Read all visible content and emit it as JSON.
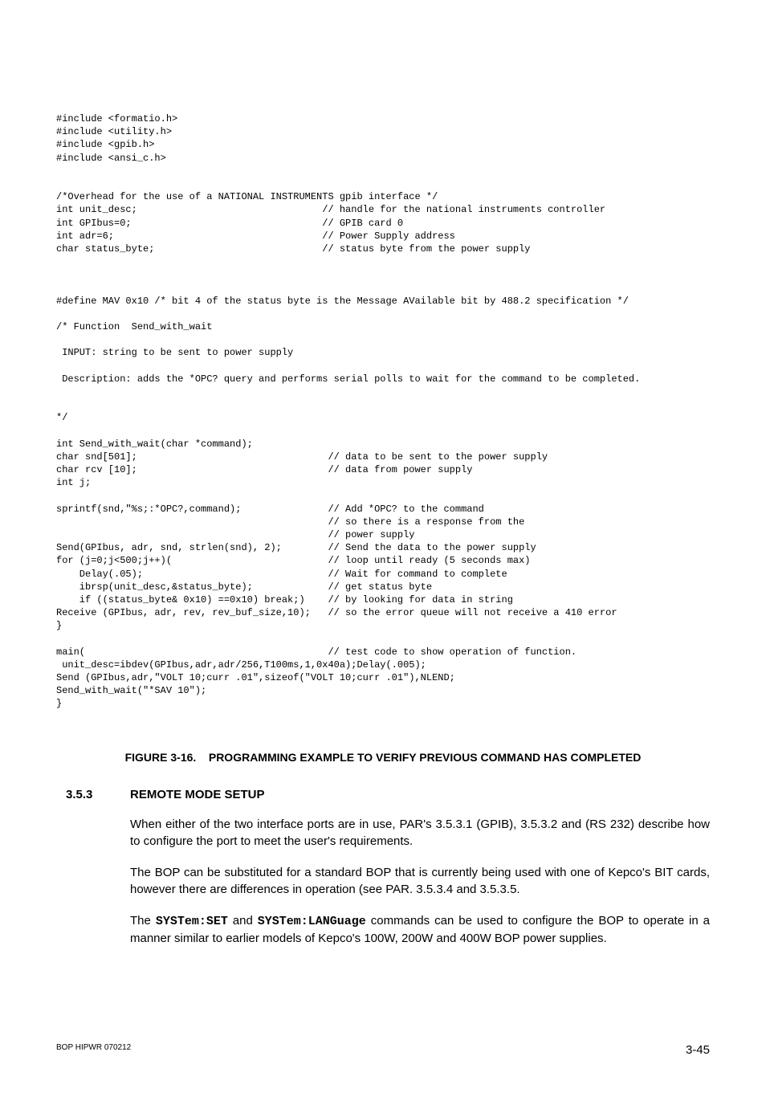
{
  "code": {
    "lines": [
      "#include <formatio.h>",
      "#include <utility.h>",
      "#include <gpib.h>",
      "#include <ansi_c.h>",
      "",
      "",
      "/*Overhead for the use of a NATIONAL INSTRUMENTS gpib interface */",
      "int unit_desc;                                // handle for the national instruments controller",
      "int GPIbus=0;                                 // GPIB card 0",
      "int adr=6;                                    // Power Supply address",
      "char status_byte;                             // status byte from the power supply",
      "",
      "",
      "",
      "#define MAV 0x10 /* bit 4 of the status byte is the Message AVailable bit by 488.2 specification */",
      "",
      "/* Function  Send_with_wait",
      "",
      " INPUT: string to be sent to power supply",
      "",
      " Description: adds the *OPC? query and performs serial polls to wait for the command to be completed.",
      "",
      "",
      "*/",
      "",
      "int Send_with_wait(char *command);",
      "char snd[501];                                 // data to be sent to the power supply",
      "char rcv [10];                                 // data from power supply",
      "int j;",
      "",
      "sprintf(snd,\"%s;:*OPC?,command);               // Add *OPC? to the command",
      "                                               // so there is a response from the",
      "                                               // power supply",
      "Send(GPIbus, adr, snd, strlen(snd), 2);        // Send the data to the power supply",
      "for (j=0;j<500;j++)(                           // loop until ready (5 seconds max)",
      "    Delay(.05);                                // Wait for command to complete",
      "    ibrsp(unit_desc,&status_byte);             // get status byte",
      "    if ((status_byte& 0x10) ==0x10) break;)    // by looking for data in string",
      "Receive (GPIbus, adr, rev, rev_buf_size,10);   // so the error queue will not receive a 410 error",
      "}",
      "",
      "main(                                          // test code to show operation of function.",
      " unit_desc=ibdev(GPIbus,adr,adr/256,T100ms,1,0x40a);Delay(.005);",
      "Send (GPIbus,adr,\"VOLT 10;curr .01\",sizeof(\"VOLT 10;curr .01\"),NLEND;",
      "Send_with_wait(\"*SAV 10\");",
      "}"
    ]
  },
  "figure": {
    "label": "FIGURE 3-16.",
    "title": "PROGRAMMING EXAMPLE TO VERIFY PREVIOUS COMMAND HAS COMPLETED"
  },
  "section": {
    "number": "3.5.3",
    "title": "REMOTE MODE SETUP"
  },
  "paragraphs": {
    "p1": "When either of the two interface ports are in use, PAR's 3.5.3.1 (GPIB), 3.5.3.2 and (RS 232) describe how to configure the port to meet the user's requirements.",
    "p2": "The BOP can be substituted for a standard BOP that is currently being used with one of Kepco's BIT cards, however there are differences in operation (see PAR. 3.5.3.4 and 3.5.3.5.",
    "p3_a": "The ",
    "p3_cmd1": "SYSTem:SET",
    "p3_b": " and ",
    "p3_cmd2": "SYSTem:LANGuage",
    "p3_c": " commands can be used to configure the BOP to operate in a manner similar to earlier models of Kepco's 100W, 200W and 400W BOP power supplies."
  },
  "footer": {
    "left": "BOP HIPWR 070212",
    "right": "3-45"
  },
  "style": {
    "code_fontsize": 12,
    "body_fontsize": 15,
    "caption_fontsize": 14,
    "footer_left_fontsize": 10,
    "background_color": "#ffffff",
    "text_color": "#000000"
  }
}
